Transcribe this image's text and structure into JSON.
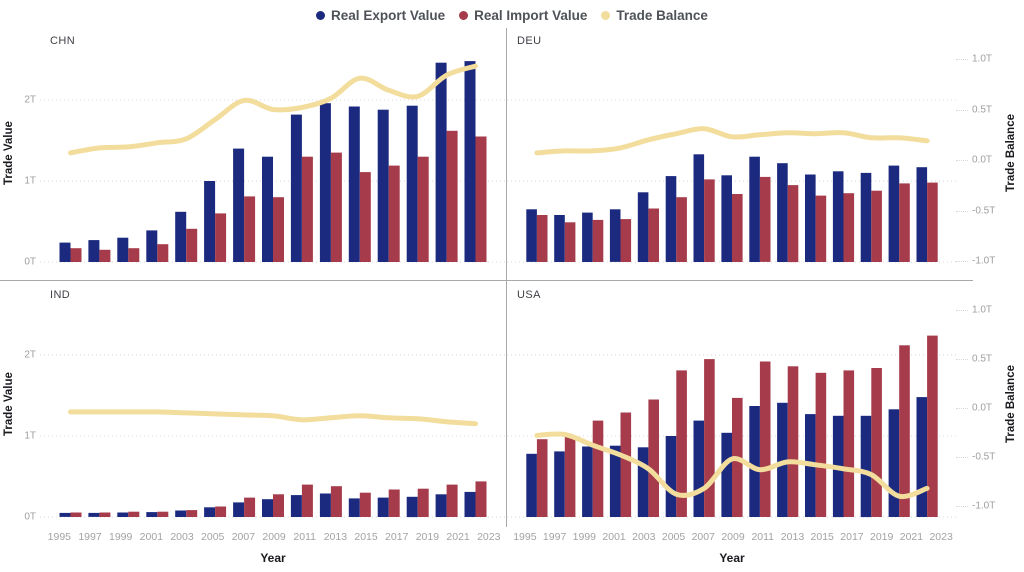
{
  "legend": {
    "items": [
      {
        "label": "Real Export Value",
        "color": "#1b2a7f"
      },
      {
        "label": "Real Import Value",
        "color": "#a63c4b"
      },
      {
        "label": "Trade Balance",
        "color": "#f2dd9d"
      }
    ]
  },
  "axes": {
    "left_title": "Trade Value",
    "right_title": "Trade Balance",
    "x_title": "Year",
    "left_ticks": [
      "0T",
      "1T",
      "2T"
    ],
    "right_ticks_top_down": [
      "1.0T",
      "0.5T",
      "0.0T",
      "-0.5T",
      "-1.0T"
    ]
  },
  "chart_data": {
    "type": "bar",
    "subtype": "small-multiples grouped bars + smooth line on secondary axis",
    "categories": [
      1995,
      1997,
      1999,
      2001,
      2003,
      2005,
      2007,
      2009,
      2011,
      2013,
      2015,
      2017,
      2019,
      2021,
      2023
    ],
    "xlabel": "Year",
    "legend_position": "top-center",
    "grid": "dotted horizontal gridlines at 0T, 1T, 2T",
    "left_axis": {
      "label": "Trade Value",
      "ticks": [
        "0T",
        "1T",
        "2T"
      ],
      "unit": "trillions",
      "range": [
        0,
        2.9
      ]
    },
    "right_axis": {
      "label": "Trade Balance",
      "ticks": [
        "-1.0T",
        "-0.5T",
        "0.0T",
        "0.5T",
        "1.0T"
      ],
      "unit": "trillions",
      "range": [
        -1.0,
        1.0
      ]
    },
    "panels": [
      {
        "label": "CHN",
        "series": [
          {
            "name": "Real Export Value",
            "axis": "left",
            "values": [
              0.24,
              0.27,
              0.3,
              0.39,
              0.62,
              1.0,
              1.4,
              1.3,
              1.82,
              1.96,
              1.92,
              1.88,
              1.93,
              2.46,
              2.48
            ]
          },
          {
            "name": "Real Import Value",
            "axis": "left",
            "values": [
              0.17,
              0.15,
              0.17,
              0.22,
              0.41,
              0.6,
              0.81,
              0.8,
              1.3,
              1.35,
              1.11,
              1.19,
              1.3,
              1.62,
              1.55
            ]
          },
          {
            "name": "Trade Balance",
            "axis": "right",
            "values": [
              0.07,
              0.12,
              0.13,
              0.17,
              0.21,
              0.4,
              0.59,
              0.5,
              0.52,
              0.61,
              0.81,
              0.69,
              0.63,
              0.84,
              0.93
            ]
          }
        ]
      },
      {
        "label": "DEU",
        "series": [
          {
            "name": "Real Export Value",
            "axis": "left",
            "values": [
              0.65,
              0.58,
              0.61,
              0.65,
              0.86,
              1.06,
              1.33,
              1.07,
              1.3,
              1.22,
              1.08,
              1.12,
              1.1,
              1.19,
              1.17
            ]
          },
          {
            "name": "Real Import Value",
            "axis": "left",
            "values": [
              0.58,
              0.49,
              0.52,
              0.53,
              0.66,
              0.8,
              1.02,
              0.84,
              1.05,
              0.95,
              0.82,
              0.85,
              0.88,
              0.97,
              0.98
            ]
          },
          {
            "name": "Trade Balance",
            "axis": "right",
            "values": [
              0.07,
              0.09,
              0.09,
              0.12,
              0.2,
              0.26,
              0.31,
              0.23,
              0.25,
              0.27,
              0.26,
              0.27,
              0.22,
              0.22,
              0.19
            ]
          }
        ]
      },
      {
        "label": "IND",
        "series": [
          {
            "name": "Real Export Value",
            "axis": "left",
            "values": [
              0.05,
              0.05,
              0.055,
              0.06,
              0.08,
              0.12,
              0.18,
              0.22,
              0.27,
              0.29,
              0.23,
              0.24,
              0.25,
              0.28,
              0.31
            ]
          },
          {
            "name": "Real Import Value",
            "axis": "left",
            "values": [
              0.055,
              0.055,
              0.065,
              0.065,
              0.085,
              0.13,
              0.24,
              0.28,
              0.4,
              0.38,
              0.3,
              0.34,
              0.35,
              0.4,
              0.44
            ]
          },
          {
            "name": "Trade Balance",
            "axis": "right",
            "values": [
              -0.04,
              -0.04,
              -0.04,
              -0.04,
              -0.05,
              -0.06,
              -0.07,
              -0.08,
              -0.12,
              -0.1,
              -0.08,
              -0.1,
              -0.11,
              -0.14,
              -0.16
            ]
          }
        ]
      },
      {
        "label": "USA",
        "series": [
          {
            "name": "Real Export Value",
            "axis": "left",
            "values": [
              0.78,
              0.81,
              0.87,
              0.88,
              0.86,
              1.0,
              1.19,
              1.04,
              1.37,
              1.41,
              1.27,
              1.25,
              1.25,
              1.33,
              1.48
            ]
          },
          {
            "name": "Real Import Value",
            "axis": "left",
            "values": [
              0.96,
              1.0,
              1.19,
              1.29,
              1.45,
              1.81,
              1.95,
              1.47,
              1.92,
              1.86,
              1.78,
              1.81,
              1.84,
              2.12,
              2.24
            ]
          },
          {
            "name": "Trade Balance",
            "axis": "right",
            "values": [
              -0.28,
              -0.27,
              -0.38,
              -0.48,
              -0.62,
              -0.88,
              -0.82,
              -0.52,
              -0.63,
              -0.55,
              -0.58,
              -0.62,
              -0.68,
              -0.9,
              -0.82
            ]
          }
        ]
      }
    ]
  },
  "colors": {
    "background": "#ffffff",
    "gridline": "#d9d9d9",
    "divider": "#a9a9a9",
    "tick_text": "#9e9e9e",
    "panel_label": "#3f3f46",
    "axis_title": "#1a1a1f",
    "year_text": "#a3a3a3",
    "legend_text": "#4f5258"
  }
}
